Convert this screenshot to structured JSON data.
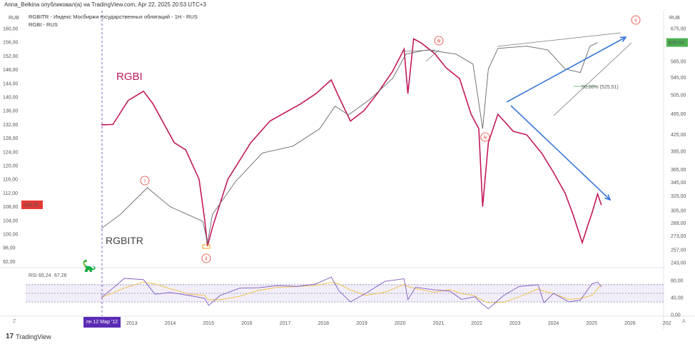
{
  "header": {
    "published": "Anna_Belkina опубликовал(а) на TradingView.com, Apr 22, 2025 20:53 UTC+3"
  },
  "legend": {
    "line1": "RGBITR - Индекс Мосбиржи государственных облигаций - 1H - RUS",
    "line2": "RGBI - RUS"
  },
  "axis_unit": "RUB",
  "footer": {
    "brand": "TradingView"
  },
  "date_pill": "пн 12 Мар '12",
  "zoom_label": "Z",
  "auto_label": "A",
  "colors": {
    "rgbi": "#c2185b",
    "rgbitr": "#666666",
    "rsi": "#7e57c2",
    "rsi_ma": "#f0c040",
    "arrow": "#3a78d8",
    "up_tag": "#4caf50",
    "down_tag": "#e53935"
  },
  "chart_data": {
    "type": "line",
    "x_ticks": [
      "2013",
      "2014",
      "2015",
      "2016",
      "2017",
      "2018",
      "2019",
      "2020",
      "2021",
      "2022",
      "2023",
      "2024",
      "2025",
      "2026",
      "202"
    ],
    "left_axis": {
      "ticks": [
        "160,00",
        "156,00",
        "152,00",
        "148,00",
        "144,00",
        "140,00",
        "136,00",
        "132,00",
        "128,00",
        "124,00",
        "120,00",
        "116,00",
        "112,00",
        "108,00",
        "104,00",
        "100,00",
        "96,00",
        "92,00"
      ],
      "ylim": [
        92,
        160
      ],
      "last_value": "108,55"
    },
    "right_axis": {
      "scale": "log",
      "ticks": [
        "675,00",
        "585,00",
        "545,00",
        "505,00",
        "465,00",
        "425,00",
        "395,00",
        "365,00",
        "345,00",
        "325,00",
        "305,00",
        "289,00",
        "273,00",
        "257,00",
        "243,00"
      ],
      "ylim": [
        243,
        675
      ],
      "last_value": "635,04"
    },
    "series": [
      {
        "name": "RGBI",
        "axis": "left",
        "x": [
          2012.2,
          2012.5,
          2012.9,
          2013.3,
          2013.55,
          2014.1,
          2014.4,
          2014.75,
          2014.9,
          2014.97,
          2015.1,
          2015.5,
          2016.1,
          2016.6,
          2017.4,
          2017.8,
          2018.2,
          2018.4,
          2018.7,
          2019.05,
          2019.4,
          2019.8,
          2020.1,
          2020.2,
          2020.35,
          2020.55,
          2020.9,
          2021.2,
          2021.55,
          2021.85,
          2022.05,
          2022.15,
          2022.3,
          2022.55,
          2022.95,
          2023.3,
          2023.7,
          2024.0,
          2024.3,
          2024.5,
          2024.75,
          2024.9,
          2025.0,
          2025.15,
          2025.25
        ],
        "values": [
          131.9,
          132,
          139,
          141.7,
          138,
          126.7,
          124.6,
          116,
          104,
          96.5,
          102,
          116,
          126.7,
          133,
          138,
          141,
          145,
          140,
          133,
          136,
          141,
          147.5,
          154,
          141,
          157,
          155.8,
          152.7,
          148.5,
          145.4,
          135,
          130.8,
          108,
          126.7,
          135,
          130,
          129,
          123.5,
          118,
          112,
          106,
          97.5,
          102.7,
          106,
          111.7,
          108.5
        ]
      },
      {
        "name": "RGBITR",
        "axis": "right",
        "x": [
          2012.2,
          2012.7,
          2013.4,
          2014.0,
          2014.85,
          2014.97,
          2015.1,
          2015.7,
          2016.4,
          2017.2,
          2017.9,
          2018.3,
          2018.65,
          2019.2,
          2019.8,
          2020.15,
          2020.7,
          2020.97,
          2021.45,
          2021.9,
          2022.15,
          2022.3,
          2022.55,
          2023.3,
          2023.85,
          2024.3,
          2024.7,
          2024.95,
          2025.15
        ],
        "values": [
          282,
          300,
          337,
          310,
          291,
          265,
          300,
          346,
          392,
          404,
          436,
          481,
          463,
          495,
          543,
          604,
          615,
          611,
          604,
          578,
          436,
          566,
          619,
          625,
          615,
          566,
          557,
          625,
          635
        ]
      },
      {
        "name": "RSI",
        "axis": "rsi",
        "x": [
          2012.2,
          2012.5,
          2012.8,
          2013.3,
          2013.6,
          2014.0,
          2014.5,
          2014.9,
          2015.0,
          2015.3,
          2015.8,
          2016.3,
          2016.8,
          2017.3,
          2017.8,
          2018.2,
          2018.4,
          2018.7,
          2019.1,
          2019.6,
          2020.1,
          2020.2,
          2020.4,
          2020.9,
          2021.3,
          2021.6,
          2021.95,
          2022.1,
          2022.3,
          2022.7,
          2023.1,
          2023.6,
          2023.75,
          2024.0,
          2024.4,
          2024.7,
          2025.0,
          2025.15,
          2025.25
        ],
        "values": [
          40,
          62,
          85,
          82,
          48,
          52,
          45,
          38,
          22,
          45,
          62,
          63,
          68,
          66,
          72,
          88,
          56,
          30,
          50,
          78,
          84,
          35,
          64,
          58,
          55,
          36,
          42,
          28,
          14,
          45,
          66,
          70,
          28,
          50,
          30,
          34,
          72,
          76,
          65
        ]
      }
    ],
    "rsi": {
      "label": "RSI",
      "value": "65,24",
      "ma_value": "67,26",
      "ticks": [
        "80,00",
        "40,00",
        "0,00"
      ],
      "ylim": [
        0,
        100
      ],
      "bands": [
        30,
        50,
        70
      ]
    },
    "annotations": {
      "rgbi_label": "RGBI",
      "rgbitr_label": "RGBITR",
      "waves": [
        "i",
        "ii",
        "iii",
        "iv",
        "v"
      ],
      "fib": "50,00% (525,51)"
    }
  }
}
